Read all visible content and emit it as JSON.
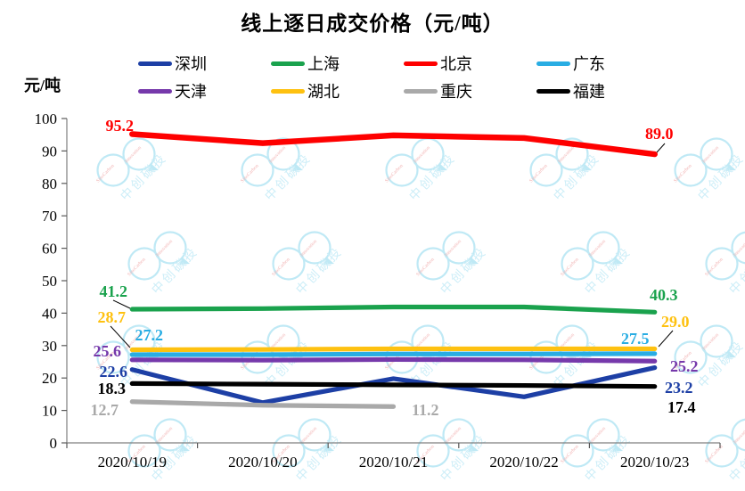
{
  "title": "线上逐日成交价格（元/吨）",
  "y_axis_label": "元/吨",
  "watermark": {
    "text": "中创碳投",
    "latin_text_1": "SinoCarbon",
    "latin_text_2": "Innovation",
    "circle_color": "#bfe9f5",
    "text_color": "#cdeef8",
    "latin_color": "#f2b4b4"
  },
  "chart_data": {
    "type": "line",
    "title": "线上逐日成交价格（元/吨）",
    "xlabel": "",
    "ylabel": "元/吨",
    "categories": [
      "2020/10/19",
      "2020/10/20",
      "2020/10/21",
      "2020/10/22",
      "2020/10/23"
    ],
    "ylim": [
      0,
      100
    ],
    "yticks": [
      0,
      10,
      20,
      30,
      40,
      50,
      60,
      70,
      80,
      90,
      100
    ],
    "grid": false,
    "legend_position": "top",
    "legend_rows": [
      [
        "shenzhen",
        "shanghai",
        "beijing",
        "guangdong"
      ],
      [
        "tianjin",
        "hubei",
        "chongqing",
        "fujian"
      ]
    ],
    "series": [
      {
        "key": "shenzhen",
        "name": "深圳",
        "color": "#1d3fa5",
        "values": [
          22.6,
          12.4,
          19.8,
          14.2,
          23.2
        ],
        "label_first": "22.6",
        "label_last": "23.2"
      },
      {
        "key": "shanghai",
        "name": "上海",
        "color": "#1aa24d",
        "values": [
          41.2,
          41.4,
          41.9,
          41.9,
          40.3
        ],
        "label_first": "41.2",
        "label_last": "40.3"
      },
      {
        "key": "beijing",
        "name": "北京",
        "color": "#fe0000",
        "values": [
          95.2,
          92.4,
          94.8,
          94.0,
          89.0
        ],
        "label_first": "95.2",
        "label_last": "89.0"
      },
      {
        "key": "guangdong",
        "name": "广东",
        "color": "#29ade3",
        "values": [
          27.2,
          27.2,
          27.4,
          27.4,
          27.5
        ],
        "label_first": "27.2",
        "label_last": "27.5"
      },
      {
        "key": "tianjin",
        "name": "天津",
        "color": "#7639ab",
        "values": [
          25.6,
          25.5,
          25.7,
          25.6,
          25.2
        ],
        "label_first": "25.6",
        "label_last": "25.2"
      },
      {
        "key": "hubei",
        "name": "湖北",
        "color": "#fec110",
        "values": [
          28.7,
          28.8,
          29.0,
          29.0,
          29.0
        ],
        "label_first": "28.7",
        "label_last": "29.0"
      },
      {
        "key": "chongqing",
        "name": "重庆",
        "color": "#a9a9a9",
        "values": [
          12.7,
          11.6,
          11.2,
          null,
          null
        ],
        "label_first": "12.7",
        "label_last": "11.2"
      },
      {
        "key": "fujian",
        "name": "福建",
        "color": "#000000",
        "values": [
          18.3,
          18.1,
          17.9,
          17.7,
          17.4
        ],
        "label_first": "18.3",
        "label_last": "17.4"
      }
    ]
  }
}
